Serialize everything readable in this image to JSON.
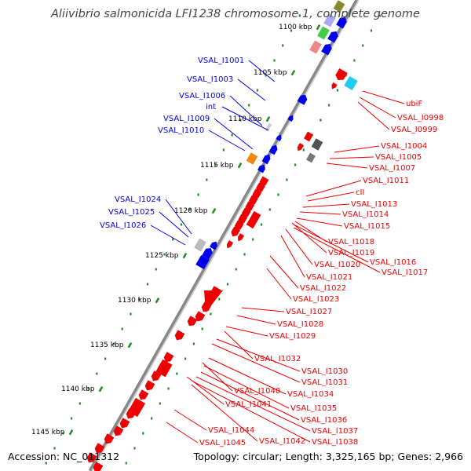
{
  "title": "Aliivibrio salmonicida LFI1238 chromosome 1, complete genome",
  "footer": {
    "accession": "Accession: NC_011312",
    "summary": "Topology: circular; Length: 3,325,165 bp; Genes: 2,966"
  },
  "colors": {
    "forward_strand": "#0000ee",
    "reverse_strand": "#ee0000",
    "backbone": "#888888",
    "tick": "#228b22"
  },
  "kbp_ticks": [
    "1100 kbp",
    "1105 kbp",
    "1110 kbp",
    "1115 kbp",
    "1120 kbp",
    "1125 kbp",
    "1130 kbp",
    "1135 kbp",
    "1140 kbp",
    "1145 kbp"
  ],
  "labels_left": [
    "VSAL_I1001",
    "VSAL_I1003",
    "VSAL_I1006",
    "int",
    "VSAL_I1009",
    "VSAL_I1010",
    "VSAL_I1024",
    "VSAL_I1025",
    "VSAL_I1026"
  ],
  "labels_right": [
    "ubiF",
    "VSAL_I0998",
    "VSAL_I0999",
    "VSAL_I1004",
    "VSAL_I1005",
    "VSAL_I1007",
    "VSAL_I1011",
    "cII",
    "VSAL_I1013",
    "VSAL_I1014",
    "VSAL_I1015",
    "VSAL_I1018",
    "VSAL_I1019",
    "VSAL_I1016",
    "VSAL_I1020",
    "VSAL_I1017",
    "VSAL_I1021",
    "VSAL_I1022",
    "VSAL_I1023",
    "VSAL_I1027",
    "VSAL_I1028",
    "VSAL_I1029",
    "VSAL_I1032",
    "VSAL_I1030",
    "VSAL_I1031",
    "VSAL_I1040",
    "VSAL_I1034",
    "VSAL_I1041",
    "VSAL_I1035",
    "VSAL_I1036",
    "VSAL_I1037",
    "VSAL_I1044",
    "VSAL_I1042",
    "VSAL_I1038",
    "VSAL_I1045"
  ]
}
